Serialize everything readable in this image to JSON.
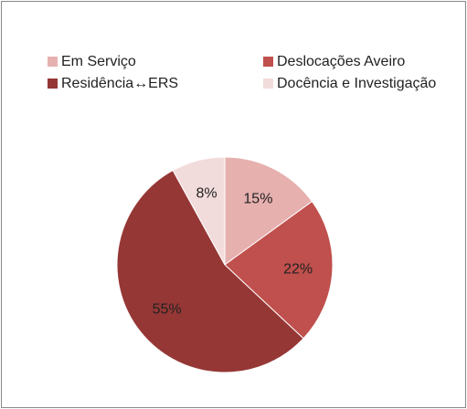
{
  "chart_data": {
    "type": "pie",
    "categories": [
      "Em Serviço",
      "Deslocações Aveiro",
      "Residência↔ERS",
      "Docência e Investigação"
    ],
    "values": [
      15,
      22,
      55,
      8
    ],
    "value_labels": [
      "15%",
      "22%",
      "55%",
      "8%"
    ],
    "colors": [
      "#e6b0af",
      "#c0504d",
      "#953735",
      "#f2dcdb"
    ],
    "legend": "top"
  }
}
